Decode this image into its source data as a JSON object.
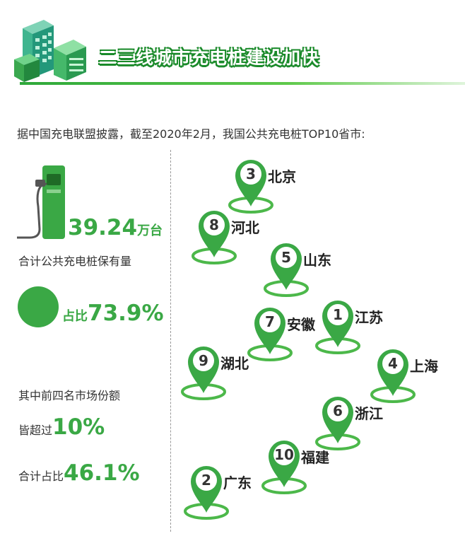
{
  "header": {
    "title": "二三线城市充电桩建设加快"
  },
  "intro": "据中国充电联盟披露，截至2020年2月，我国公共充电桩TOP10省市:",
  "stats": {
    "total_value": "39.24",
    "total_unit": "万台",
    "total_label": "合计公共充电桩保有量",
    "share_prefix": "占比",
    "share_value": "73.9%",
    "share_fraction": 0.739,
    "top4_line1": "其中前四名市场份额",
    "top4_line2_prefix": "皆超过",
    "top4_line2_value": "10%",
    "top4_line3_prefix": "合计占比",
    "top4_line3_value": "46.1%"
  },
  "cities": [
    {
      "rank": "3",
      "name": "北京"
    },
    {
      "rank": "8",
      "name": "河北"
    },
    {
      "rank": "5",
      "name": "山东"
    },
    {
      "rank": "7",
      "name": "安徽"
    },
    {
      "rank": "1",
      "name": "江苏"
    },
    {
      "rank": "9",
      "name": "湖北"
    },
    {
      "rank": "4",
      "name": "上海"
    },
    {
      "rank": "6",
      "name": "浙江"
    },
    {
      "rank": "10",
      "name": "福建"
    },
    {
      "rank": "2",
      "name": "广东"
    }
  ],
  "colors": {
    "accent": "#3aa845",
    "dark_accent": "#1a8a2a",
    "ring": "#4cb84a"
  },
  "icons": [
    "buildings-icon",
    "charging-station-icon",
    "location-pin-icon"
  ]
}
